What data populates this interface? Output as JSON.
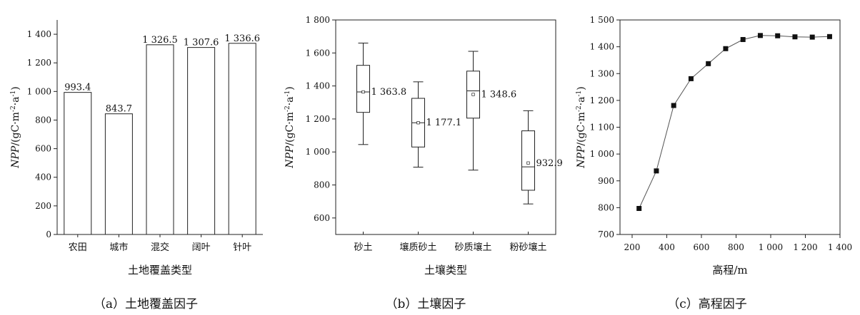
{
  "chart_data": [
    {
      "type": "bar",
      "categories": [
        "农田",
        "城市",
        "混交",
        "阔叶",
        "针叶"
      ],
      "values": [
        993.4,
        843.7,
        1326.5,
        1307.6,
        1336.6
      ],
      "value_labels": [
        "993.4",
        "843.7",
        "1 326.5",
        "1 307.6",
        "1 336.6"
      ],
      "xlabel": "土地覆盖类型",
      "ylabel": {
        "italic": "NPP",
        "rest": "/(gC·m",
        "sup1": "-2",
        "mid": "·a",
        "sup2": "-1",
        "end": ")"
      },
      "ylim": [
        0,
        1500
      ],
      "yticks": [
        0,
        200,
        400,
        600,
        800,
        1000,
        1200,
        1400
      ],
      "ytick_labels": [
        "0",
        "200",
        "400",
        "600",
        "800",
        "1 000",
        "1 200",
        "1 400"
      ],
      "caption": "（a）土地覆盖因子"
    },
    {
      "type": "box",
      "categories": [
        "砂土",
        "壤质砂土",
        "砂质壤土",
        "粉砂壤土"
      ],
      "boxes": [
        {
          "min": 1045,
          "q1": 1240,
          "median": 1363.8,
          "mean": 1363.8,
          "q3": 1525,
          "max": 1660,
          "label": "1 363.8"
        },
        {
          "min": 908,
          "q1": 1030,
          "median": 1177.1,
          "mean": 1177.1,
          "q3": 1325,
          "max": 1425,
          "label": "1 177.1"
        },
        {
          "min": 890,
          "q1": 1205,
          "median": 1370,
          "mean": 1348.6,
          "q3": 1490,
          "max": 1610,
          "label": "1 348.6"
        },
        {
          "min": 685,
          "q1": 768,
          "median": 910,
          "mean": 932.9,
          "q3": 1128,
          "max": 1250,
          "label": "932.9"
        }
      ],
      "xlabel": "土壤类型",
      "ylabel": {
        "italic": "NPP",
        "rest": "/(gC·m",
        "sup1": "-2",
        "mid": "·a",
        "sup2": "-1",
        "end": ")"
      },
      "ylim": [
        500,
        1800
      ],
      "yticks": [
        600,
        800,
        1000,
        1200,
        1400,
        1600,
        1800
      ],
      "ytick_labels": [
        "600",
        "800",
        "1 000",
        "1 200",
        "1 400",
        "1 600",
        "1 800"
      ],
      "caption": "（b）土壤因子"
    },
    {
      "type": "line",
      "x": [
        240,
        340,
        440,
        540,
        640,
        740,
        840,
        940,
        1040,
        1140,
        1240,
        1340
      ],
      "y": [
        797,
        937,
        1181,
        1281,
        1337,
        1393,
        1427,
        1442,
        1441,
        1437,
        1436,
        1438
      ],
      "xlabel": "高程/m",
      "ylabel": {
        "italic": "NPP",
        "rest": "/(gC·m",
        "sup1": "-2",
        "mid": "·a",
        "sup2": "-1",
        "end": ")"
      },
      "xlim": [
        130,
        1400
      ],
      "ylim": [
        700,
        1500
      ],
      "xticks": [
        200,
        400,
        600,
        800,
        1000,
        1200,
        1400
      ],
      "xtick_labels": [
        "200",
        "400",
        "600",
        "800",
        "1 000",
        "1 200",
        "1 400"
      ],
      "yticks": [
        700,
        800,
        900,
        1000,
        1100,
        1200,
        1300,
        1400,
        1500
      ],
      "ytick_labels": [
        "700",
        "800",
        "900",
        "1 000",
        "1 100",
        "1 200",
        "1 300",
        "1 400",
        "1 500"
      ],
      "caption": "（c）高程因子"
    }
  ]
}
